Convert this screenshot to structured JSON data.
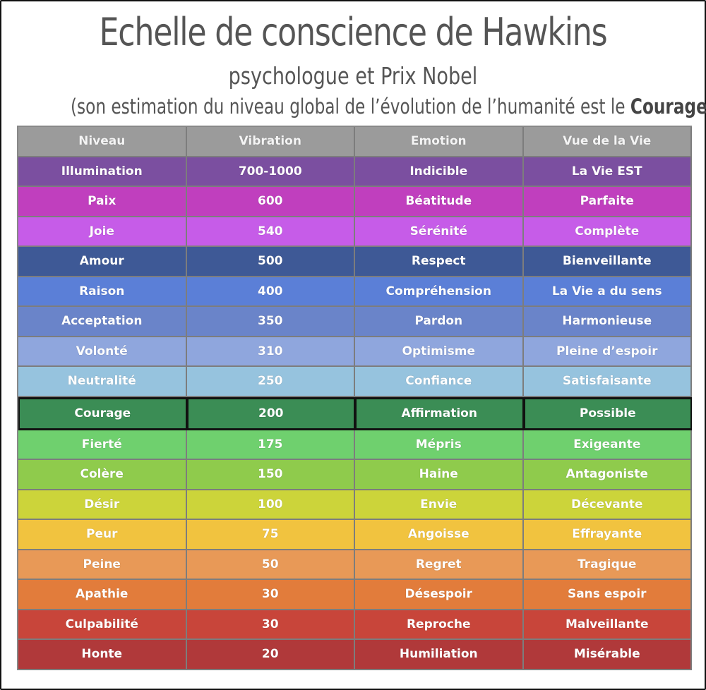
{
  "title": "Echelle de conscience de Hawkins",
  "subtitle": "psychologue et Prix Nobel",
  "note": {
    "prefix": "(son estimation du niveau global de l’évolution de l’humanité est le ",
    "emphasis": "Courage",
    "suffix": ")"
  },
  "table": {
    "headers": [
      "Niveau",
      "Vibration",
      "Emotion",
      "Vue de la Vie"
    ],
    "header_color": "#9b9b9b",
    "highlight_row": 8,
    "rows": [
      {
        "cells": [
          "Illumination",
          "700-1000",
          "Indicible",
          "La Vie EST"
        ],
        "color": "#7b4fa0"
      },
      {
        "cells": [
          "Paix",
          "600",
          "Béatitude",
          "Parfaite"
        ],
        "color": "#c03fbe"
      },
      {
        "cells": [
          "Joie",
          "540",
          "Sérénité",
          "Complète"
        ],
        "color": "#c65ce8"
      },
      {
        "cells": [
          "Amour",
          "500",
          "Respect",
          "Bienveillante"
        ],
        "color": "#3e5996"
      },
      {
        "cells": [
          "Raison",
          "400",
          "Compréhension",
          "La Vie a du sens"
        ],
        "color": "#5b7fd7"
      },
      {
        "cells": [
          "Acceptation",
          "350",
          "Pardon",
          "Harmonieuse"
        ],
        "color": "#6a84c9"
      },
      {
        "cells": [
          "Volonté",
          "310",
          "Optimisme",
          "Pleine d’espoir"
        ],
        "color": "#8fa6dd"
      },
      {
        "cells": [
          "Neutralité",
          "250",
          "Confiance",
          "Satisfaisante"
        ],
        "color": "#96c3de"
      },
      {
        "cells": [
          "Courage",
          "200",
          "Affirmation",
          "Possible"
        ],
        "color": "#3b8d55"
      },
      {
        "cells": [
          "Fierté",
          "175",
          "Mépris",
          "Exigeante"
        ],
        "color": "#6fd06e"
      },
      {
        "cells": [
          "Colère",
          "150",
          "Haine",
          "Antagoniste"
        ],
        "color": "#8fcb4c"
      },
      {
        "cells": [
          "Désir",
          "100",
          "Envie",
          "Décevante"
        ],
        "color": "#ccd43a"
      },
      {
        "cells": [
          "Peur",
          "75",
          "Angoisse",
          "Effrayante"
        ],
        "color": "#f1c33f"
      },
      {
        "cells": [
          "Peine",
          "50",
          "Regret",
          "Tragique"
        ],
        "color": "#e89957"
      },
      {
        "cells": [
          "Apathie",
          "30",
          "Désespoir",
          "Sans espoir"
        ],
        "color": "#e27c3b"
      },
      {
        "cells": [
          "Culpabilité",
          "30",
          "Reproche",
          "Malveillante"
        ],
        "color": "#c8453a"
      },
      {
        "cells": [
          "Honte",
          "20",
          "Humiliation",
          "Misérable"
        ],
        "color": "#b0393a"
      }
    ]
  }
}
